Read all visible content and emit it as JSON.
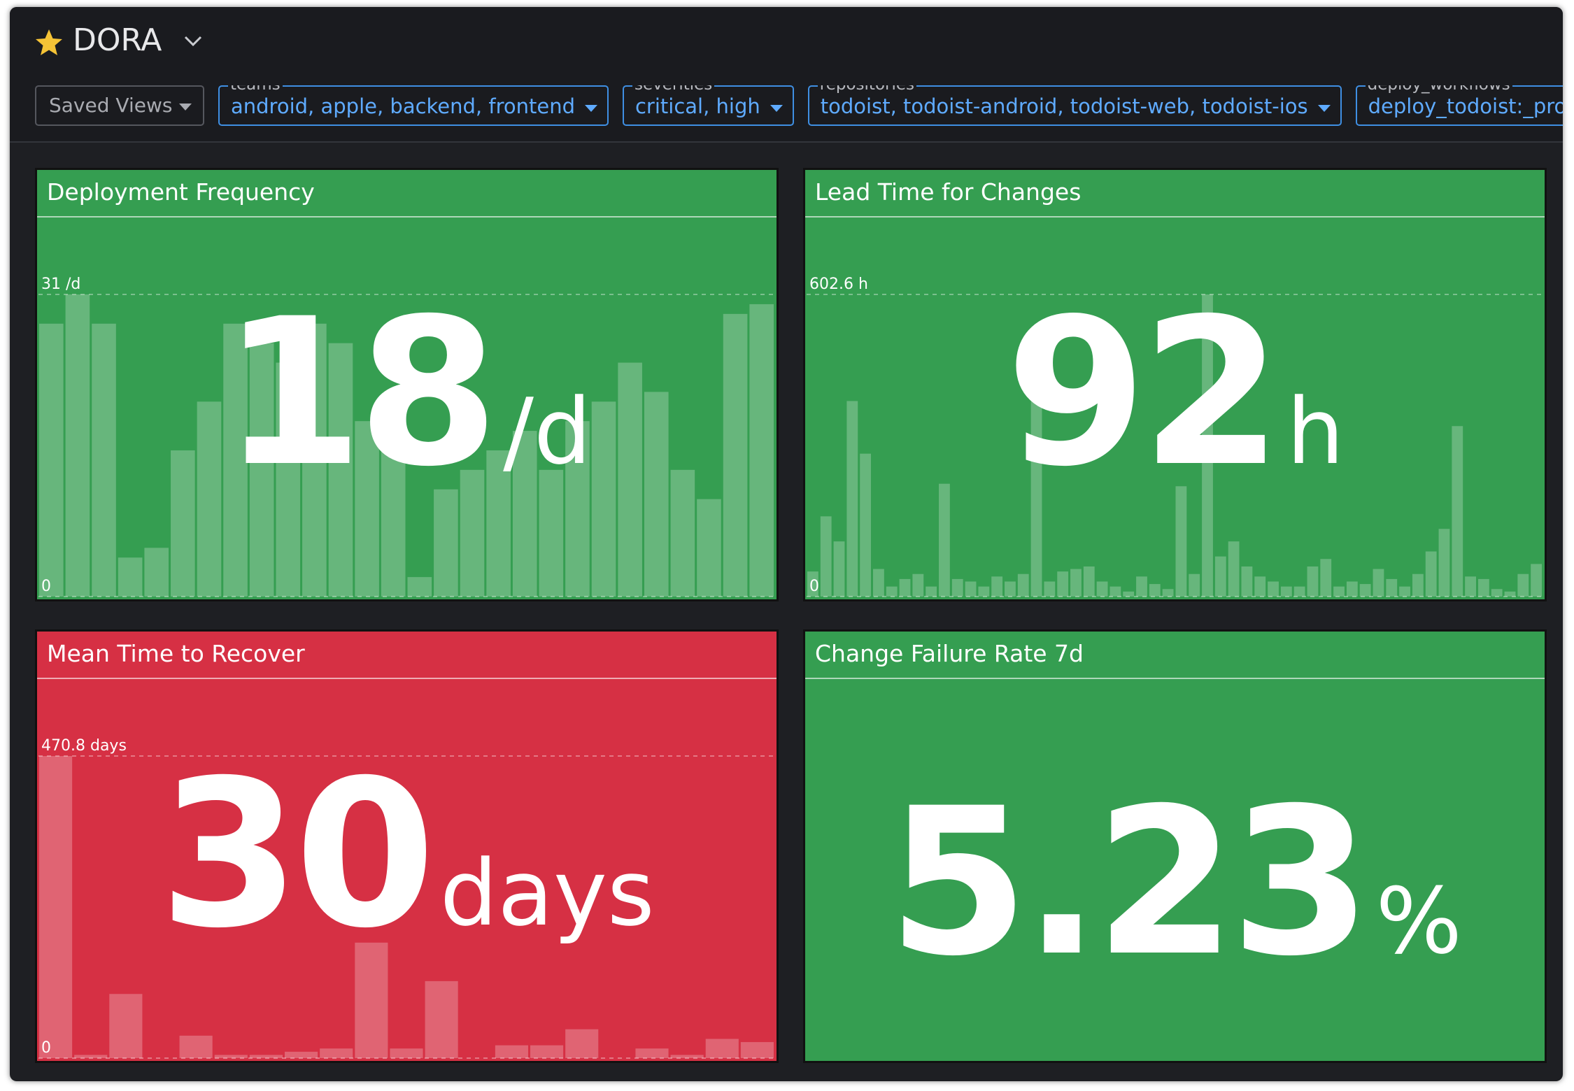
{
  "header": {
    "title": "DORA",
    "saved_views": "Saved Views",
    "filters": [
      {
        "label": "teams",
        "value": "android, apple, backend, frontend"
      },
      {
        "label": "severities",
        "value": "critical, high"
      },
      {
        "label": "repositories",
        "value": "todoist, todoist-android, todoist-web, todoist-ios"
      },
      {
        "label": "deploy_workflows",
        "value": "deploy_todoist:_production, deploy_todoist-web:_production"
      }
    ]
  },
  "widgets": [
    {
      "title": "Deployment Frequency",
      "value": 18,
      "unit": "/d",
      "color": "#359e51",
      "chart": {
        "ylim": [
          0,
          31
        ],
        "yticks": [
          0,
          {
            "value": 31,
            "label": "31 /d"
          }
        ],
        "values": [
          28,
          31,
          28,
          4,
          5,
          15,
          20,
          28,
          26,
          24,
          28,
          26,
          18,
          16,
          2,
          11,
          13,
          15,
          17,
          13,
          18,
          20,
          24,
          21,
          13,
          10,
          29,
          30
        ]
      }
    },
    {
      "title": "Lead Time for Changes",
      "value": 92,
      "unit": "h",
      "color": "#359e51",
      "chart": {
        "ylim": [
          0,
          602.6
        ],
        "yticks": [
          0,
          {
            "value": 602.6,
            "label": "602.6 h"
          }
        ],
        "values": [
          50,
          160,
          110,
          390,
          285,
          55,
          20,
          35,
          45,
          20,
          225,
          35,
          30,
          20,
          40,
          30,
          45,
          400,
          30,
          50,
          55,
          60,
          30,
          20,
          10,
          40,
          25,
          15,
          220,
          45,
          602.6,
          80,
          110,
          60,
          40,
          30,
          20,
          20,
          60,
          75,
          20,
          30,
          25,
          55,
          35,
          20,
          45,
          90,
          135,
          340,
          40,
          35,
          15,
          10,
          45,
          65
        ]
      }
    },
    {
      "title": "Mean Time to Recover",
      "value": 30,
      "unit": "days",
      "color": "#d63044",
      "chart": {
        "ylim": [
          0,
          470.8
        ],
        "yticks": [
          0,
          {
            "value": 470.8,
            "label": "470.8 days"
          }
        ],
        "values": [
          470.8,
          5,
          100,
          0,
          35,
          5,
          5,
          10,
          15,
          180,
          15,
          120,
          0,
          20,
          20,
          45,
          0,
          15,
          5,
          30,
          25
        ]
      }
    },
    {
      "title": "Change Failure Rate 7d",
      "value": 5.23,
      "unit": "%",
      "color": "#359e51"
    }
  ]
}
